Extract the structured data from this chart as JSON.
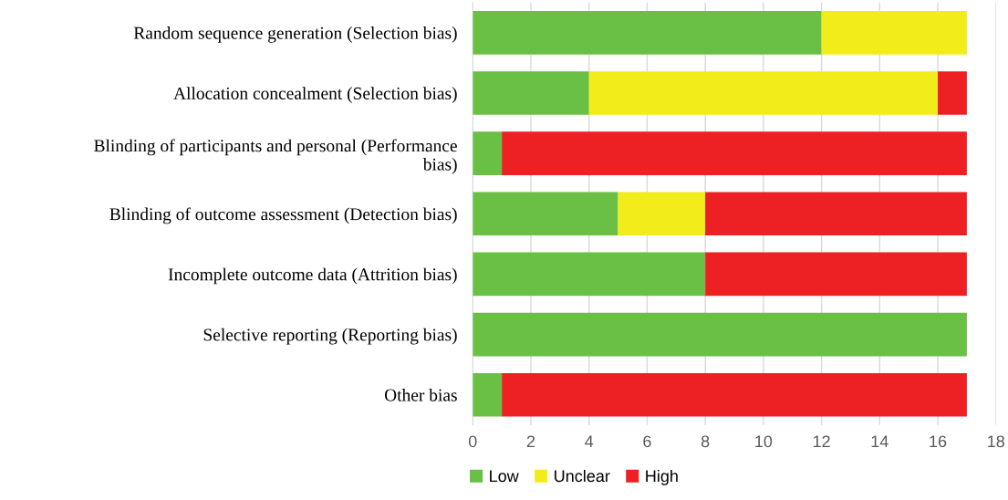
{
  "chart_data": {
    "type": "bar",
    "orientation": "horizontal",
    "stacked": true,
    "categories": [
      "Random sequence generation (Selection bias)",
      "Allocation concealment (Selection bias)",
      "Blinding of participants and personal (Performance\nbias)",
      "Blinding of outcome assessment (Detection bias)",
      "Incomplete outcome data (Attrition bias)",
      "Selective reporting (Reporting bias)",
      "Other bias"
    ],
    "series": [
      {
        "name": "Low",
        "color": "#6abf45",
        "values": [
          12,
          4,
          1,
          5,
          8,
          17,
          1
        ]
      },
      {
        "name": "Unclear",
        "color": "#f2ec1a",
        "values": [
          5,
          12,
          0,
          3,
          0,
          0,
          0
        ]
      },
      {
        "name": "High",
        "color": "#ed2024",
        "values": [
          0,
          1,
          16,
          9,
          9,
          0,
          16
        ]
      }
    ],
    "xlim": [
      0,
      18
    ],
    "xticks": [
      0,
      2,
      4,
      6,
      8,
      10,
      12,
      14,
      16,
      18
    ],
    "grid": "x",
    "legend": "bottom"
  }
}
